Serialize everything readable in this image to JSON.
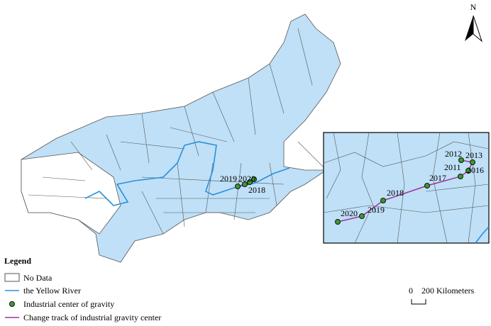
{
  "north": "N",
  "main_map": {
    "labels": [
      "2019",
      "2020",
      "2018"
    ]
  },
  "inset": {
    "labels": [
      "2012",
      "2013",
      "2011",
      "2016",
      "2017",
      "2018",
      "2019",
      "2020"
    ]
  },
  "legend": {
    "title": "Legend",
    "items": [
      "No Data",
      "the Yellow River",
      "Industrial center of gravity",
      "Change track of industrial gravity center"
    ]
  },
  "scale_bar": {
    "labels": [
      "0",
      "200 Kilometers"
    ]
  }
}
